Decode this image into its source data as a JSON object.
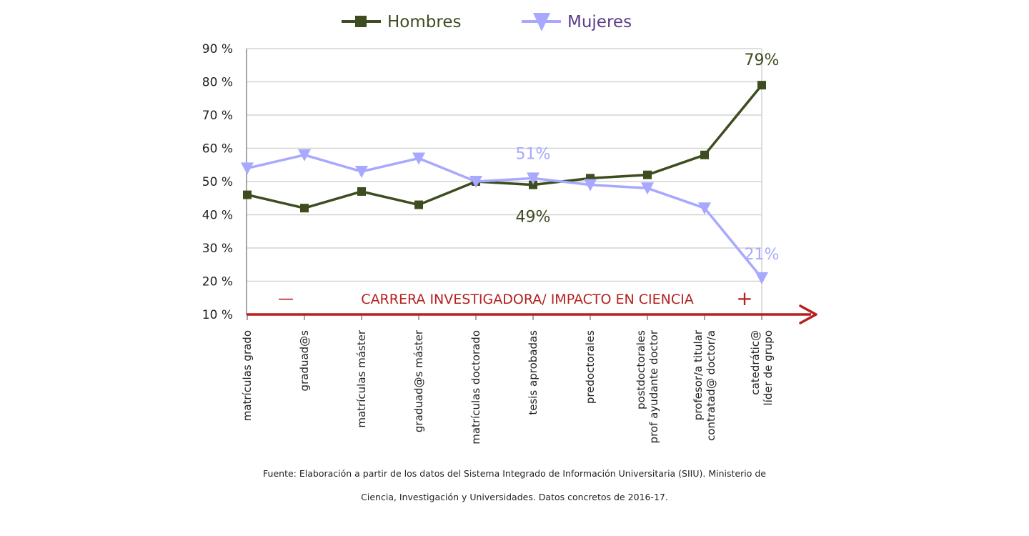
{
  "chart_data": {
    "type": "line",
    "categories": [
      [
        "matrículas grado"
      ],
      [
        "graduad@s"
      ],
      [
        "matrículas máster"
      ],
      [
        "graduad@s máster"
      ],
      [
        "matrículas doctorado"
      ],
      [
        "tesis aprobadas"
      ],
      [
        "predoctorales"
      ],
      [
        "postdoctorales",
        "prof ayudante doctor"
      ],
      [
        "profesor/a titular",
        "contratad@ doctor/a"
      ],
      [
        "catedrátic@",
        "líder de grupo"
      ]
    ],
    "series": [
      {
        "name": "Hombres",
        "values": [
          46,
          42,
          47,
          43,
          50,
          49,
          51,
          52,
          58,
          79
        ],
        "color": "#3d4d1f",
        "marker": "square"
      },
      {
        "name": "Mujeres",
        "values": [
          54,
          58,
          53,
          57,
          50,
          51,
          49,
          48,
          42,
          21
        ],
        "color": "#a8a8ff",
        "marker": "triangle-down"
      }
    ],
    "ylim": [
      10,
      90
    ],
    "yticks": [
      90,
      80,
      70,
      60,
      50,
      40,
      30,
      20,
      10
    ],
    "ytick_labels": [
      "90 %",
      "80 %",
      "70 %",
      "60 %",
      "50 %",
      "40 %",
      "30 %",
      "20 %",
      "10 %"
    ],
    "grid": true,
    "legend_position": "top",
    "annotations": [
      {
        "text": "79%",
        "series": 0,
        "index": 9
      },
      {
        "text": "49%",
        "series": 0,
        "index": 5
      },
      {
        "text": "51%",
        "series": 1,
        "index": 5
      },
      {
        "text": "21%",
        "series": 1,
        "index": 9
      }
    ],
    "axis_arrow": {
      "minus": "—",
      "label": "CARRERA INVESTIGADORA/ IMPACTO EN CIENCIA",
      "plus": "+",
      "color": "#b52020"
    }
  },
  "source_note": {
    "line1": "Fuente: Elaboración a partir de los datos del Sistema Integrado de Información Universitaria (SIIU). Ministerio de",
    "line2": "Ciencia, Investigación y Universidades. Datos concretos de 2016-17."
  }
}
